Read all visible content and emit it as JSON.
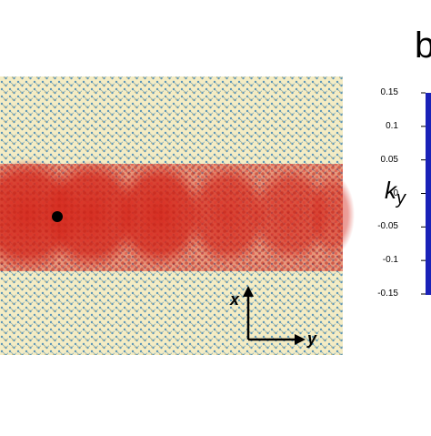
{
  "panel_label": "b",
  "ky_axis": {
    "label_main": "k",
    "label_sub": "y",
    "ticks": [
      "0.15",
      "0.1",
      "0.05",
      "0",
      "-0.05",
      "-0.1",
      "-0.15"
    ]
  },
  "axes_arrows": {
    "x_label": "x",
    "y_label": "y"
  },
  "colors": {
    "background_lattice": "#f4ecc4",
    "lattice_node": "#5a94b8",
    "wavepacket": "#d42a1e",
    "marker": "#000000",
    "bar": "#1a22b8"
  }
}
